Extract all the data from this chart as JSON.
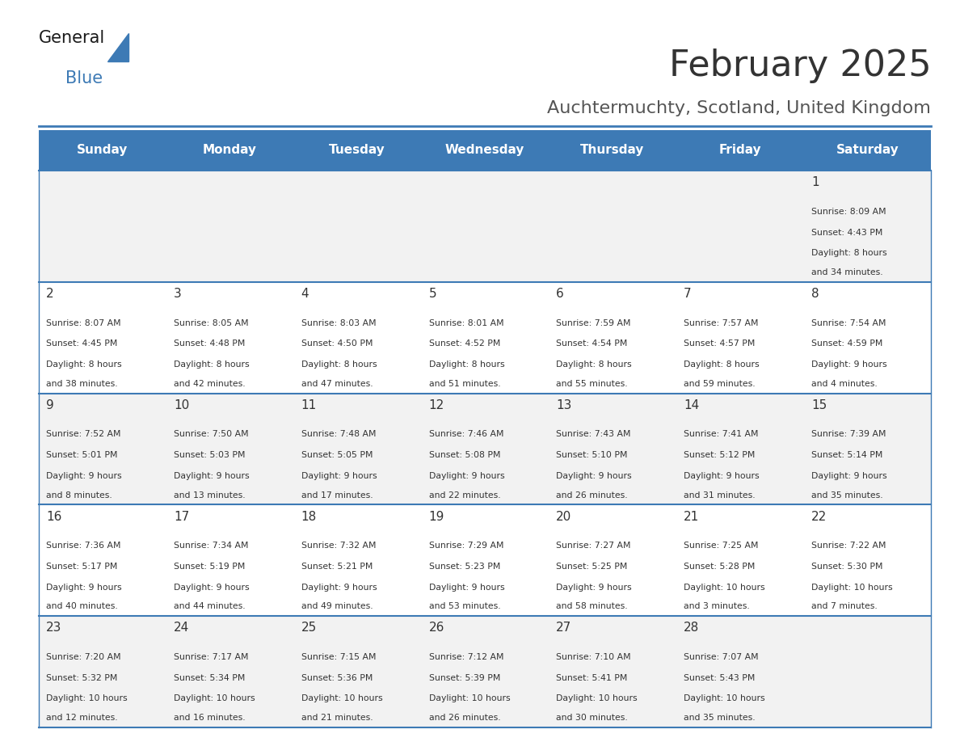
{
  "title": "February 2025",
  "subtitle": "Auchtermuchty, Scotland, United Kingdom",
  "header_color": "#3D7AB5",
  "header_text_color": "#FFFFFF",
  "cell_bg_even": "#F2F2F2",
  "cell_bg_odd": "#FFFFFF",
  "day_headers": [
    "Sunday",
    "Monday",
    "Tuesday",
    "Wednesday",
    "Thursday",
    "Friday",
    "Saturday"
  ],
  "title_color": "#333333",
  "subtitle_color": "#555555",
  "text_color": "#333333",
  "line_color": "#3D7AB5",
  "calendar_data": [
    [
      null,
      null,
      null,
      null,
      null,
      null,
      {
        "day": 1,
        "sunrise": "8:09 AM",
        "sunset": "4:43 PM",
        "daylight": "8 hours and 34 minutes."
      }
    ],
    [
      {
        "day": 2,
        "sunrise": "8:07 AM",
        "sunset": "4:45 PM",
        "daylight": "8 hours and 38 minutes."
      },
      {
        "day": 3,
        "sunrise": "8:05 AM",
        "sunset": "4:48 PM",
        "daylight": "8 hours and 42 minutes."
      },
      {
        "day": 4,
        "sunrise": "8:03 AM",
        "sunset": "4:50 PM",
        "daylight": "8 hours and 47 minutes."
      },
      {
        "day": 5,
        "sunrise": "8:01 AM",
        "sunset": "4:52 PM",
        "daylight": "8 hours and 51 minutes."
      },
      {
        "day": 6,
        "sunrise": "7:59 AM",
        "sunset": "4:54 PM",
        "daylight": "8 hours and 55 minutes."
      },
      {
        "day": 7,
        "sunrise": "7:57 AM",
        "sunset": "4:57 PM",
        "daylight": "8 hours and 59 minutes."
      },
      {
        "day": 8,
        "sunrise": "7:54 AM",
        "sunset": "4:59 PM",
        "daylight": "9 hours and 4 minutes."
      }
    ],
    [
      {
        "day": 9,
        "sunrise": "7:52 AM",
        "sunset": "5:01 PM",
        "daylight": "9 hours and 8 minutes."
      },
      {
        "day": 10,
        "sunrise": "7:50 AM",
        "sunset": "5:03 PM",
        "daylight": "9 hours and 13 minutes."
      },
      {
        "day": 11,
        "sunrise": "7:48 AM",
        "sunset": "5:05 PM",
        "daylight": "9 hours and 17 minutes."
      },
      {
        "day": 12,
        "sunrise": "7:46 AM",
        "sunset": "5:08 PM",
        "daylight": "9 hours and 22 minutes."
      },
      {
        "day": 13,
        "sunrise": "7:43 AM",
        "sunset": "5:10 PM",
        "daylight": "9 hours and 26 minutes."
      },
      {
        "day": 14,
        "sunrise": "7:41 AM",
        "sunset": "5:12 PM",
        "daylight": "9 hours and 31 minutes."
      },
      {
        "day": 15,
        "sunrise": "7:39 AM",
        "sunset": "5:14 PM",
        "daylight": "9 hours and 35 minutes."
      }
    ],
    [
      {
        "day": 16,
        "sunrise": "7:36 AM",
        "sunset": "5:17 PM",
        "daylight": "9 hours and 40 minutes."
      },
      {
        "day": 17,
        "sunrise": "7:34 AM",
        "sunset": "5:19 PM",
        "daylight": "9 hours and 44 minutes."
      },
      {
        "day": 18,
        "sunrise": "7:32 AM",
        "sunset": "5:21 PM",
        "daylight": "9 hours and 49 minutes."
      },
      {
        "day": 19,
        "sunrise": "7:29 AM",
        "sunset": "5:23 PM",
        "daylight": "9 hours and 53 minutes."
      },
      {
        "day": 20,
        "sunrise": "7:27 AM",
        "sunset": "5:25 PM",
        "daylight": "9 hours and 58 minutes."
      },
      {
        "day": 21,
        "sunrise": "7:25 AM",
        "sunset": "5:28 PM",
        "daylight": "10 hours and 3 minutes."
      },
      {
        "day": 22,
        "sunrise": "7:22 AM",
        "sunset": "5:30 PM",
        "daylight": "10 hours and 7 minutes."
      }
    ],
    [
      {
        "day": 23,
        "sunrise": "7:20 AM",
        "sunset": "5:32 PM",
        "daylight": "10 hours and 12 minutes."
      },
      {
        "day": 24,
        "sunrise": "7:17 AM",
        "sunset": "5:34 PM",
        "daylight": "10 hours and 16 minutes."
      },
      {
        "day": 25,
        "sunrise": "7:15 AM",
        "sunset": "5:36 PM",
        "daylight": "10 hours and 21 minutes."
      },
      {
        "day": 26,
        "sunrise": "7:12 AM",
        "sunset": "5:39 PM",
        "daylight": "10 hours and 26 minutes."
      },
      {
        "day": 27,
        "sunrise": "7:10 AM",
        "sunset": "5:41 PM",
        "daylight": "10 hours and 30 minutes."
      },
      {
        "day": 28,
        "sunrise": "7:07 AM",
        "sunset": "5:43 PM",
        "daylight": "10 hours and 35 minutes."
      },
      null
    ]
  ]
}
